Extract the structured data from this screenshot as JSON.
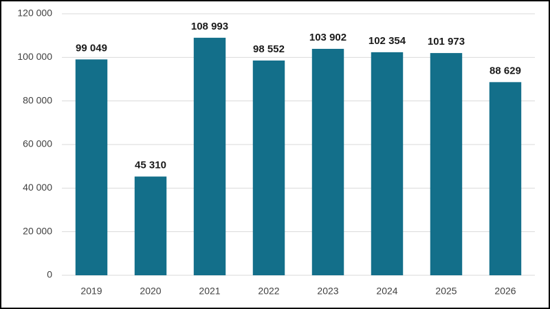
{
  "chart_data": {
    "type": "bar",
    "categories": [
      "2019",
      "2020",
      "2021",
      "2022",
      "2023",
      "2024",
      "2025",
      "2026"
    ],
    "values": [
      99049,
      45310,
      108993,
      98552,
      103902,
      102354,
      101973,
      88629
    ],
    "value_labels": [
      "99 049",
      "45 310",
      "108 993",
      "98 552",
      "103 902",
      "102 354",
      "101 973",
      "88 629"
    ],
    "color": "#136f8a",
    "ylim": [
      0,
      120000
    ],
    "yticks": [
      0,
      {
        "value": 20000,
        "label": "20 000"
      },
      {
        "value": 40000,
        "label": "40 000"
      },
      {
        "value": 60000,
        "label": "60 000"
      },
      {
        "value": 80000,
        "label": "80 000"
      },
      {
        "value": 100000,
        "label": "100 000"
      },
      {
        "value": 120000,
        "label": "120 000"
      }
    ],
    "grid": true
  }
}
